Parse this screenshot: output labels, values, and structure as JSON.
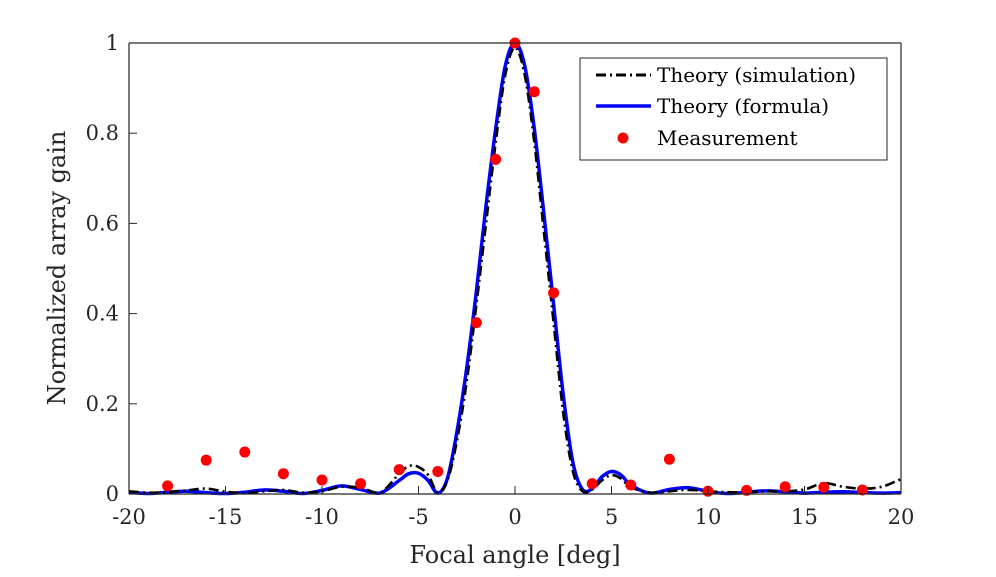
{
  "chart_data": {
    "type": "line",
    "title": "",
    "xlabel": "Focal angle [deg]",
    "ylabel": "Normalized array gain",
    "xlim": [
      -20,
      20
    ],
    "ylim": [
      0,
      1
    ],
    "xticks": [
      -20,
      -15,
      -10,
      -5,
      0,
      5,
      10,
      15,
      20
    ],
    "yticks": [
      0,
      0.2,
      0.4,
      0.6,
      0.8,
      1
    ],
    "xtick_labels": [
      "-20",
      "-15",
      "-10",
      "-5",
      "0",
      "5",
      "10",
      "15",
      "20"
    ],
    "ytick_labels": [
      "0",
      "0.2",
      "0.4",
      "0.6",
      "0.8",
      "1"
    ],
    "grid": false,
    "legend_position": "top-right",
    "series": [
      {
        "name": "Theory (simulation)",
        "style": "dash-dot",
        "color": "#000000",
        "x": [
          -20,
          -19,
          -18,
          -17,
          -16,
          -15,
          -14,
          -13,
          -12,
          -11,
          -10,
          -9,
          -8,
          -7,
          -6,
          -5.5,
          -5,
          -4.5,
          -4,
          -3.5,
          -3,
          -2.5,
          -2,
          -1.5,
          -1,
          -0.5,
          0,
          0.5,
          1,
          1.5,
          2,
          2.5,
          3,
          3.5,
          4,
          4.5,
          5,
          5.5,
          6,
          7,
          8,
          9,
          10,
          11,
          12,
          13,
          14,
          15,
          16,
          17,
          18,
          19,
          20
        ],
        "values": [
          0.006,
          0.003,
          0.004,
          0.008,
          0.012,
          0.005,
          0.002,
          0.006,
          0.009,
          0.003,
          0.006,
          0.016,
          0.014,
          0.003,
          0.045,
          0.062,
          0.06,
          0.042,
          0.003,
          0.03,
          0.12,
          0.25,
          0.42,
          0.6,
          0.78,
          0.93,
          0.99,
          0.93,
          0.78,
          0.58,
          0.38,
          0.18,
          0.05,
          0.006,
          0.01,
          0.03,
          0.042,
          0.034,
          0.015,
          0.003,
          0.006,
          0.009,
          0.006,
          0.004,
          0.004,
          0.006,
          0.006,
          0.01,
          0.024,
          0.016,
          0.012,
          0.016,
          0.033
        ]
      },
      {
        "name": "Theory (formula)",
        "style": "solid",
        "color": "#0000ff",
        "x": [
          -20,
          -19,
          -18,
          -17,
          -16,
          -15,
          -14,
          -13,
          -12,
          -11,
          -10,
          -9,
          -8,
          -7,
          -6,
          -5.5,
          -5,
          -4.5,
          -4,
          -3.5,
          -3,
          -2.5,
          -2,
          -1.5,
          -1,
          -0.5,
          0,
          0.5,
          1,
          1.5,
          2,
          2.5,
          3,
          3.5,
          4,
          4.5,
          5,
          5.5,
          6,
          7,
          8,
          9,
          10,
          11,
          12,
          13,
          14,
          15,
          16,
          17,
          18,
          19,
          20
        ],
        "values": [
          0.004,
          0.001,
          0.004,
          0.006,
          0.003,
          0.001,
          0.004,
          0.009,
          0.006,
          0.001,
          0.008,
          0.018,
          0.01,
          0.002,
          0.03,
          0.045,
          0.046,
          0.03,
          0.002,
          0.035,
          0.14,
          0.28,
          0.45,
          0.64,
          0.81,
          0.95,
          1.0,
          0.95,
          0.81,
          0.62,
          0.42,
          0.22,
          0.07,
          0.01,
          0.012,
          0.038,
          0.05,
          0.042,
          0.02,
          0.002,
          0.01,
          0.014,
          0.006,
          0.001,
          0.004,
          0.007,
          0.005,
          0.002,
          0.004,
          0.005,
          0.003,
          0.002,
          0.003
        ]
      },
      {
        "name": "Measurement",
        "style": "markers",
        "color": "#ff0000",
        "x": [
          -18,
          -16,
          -14,
          -12,
          -10,
          -8,
          -6,
          -4,
          -2,
          -1,
          0,
          1,
          2,
          4,
          6,
          8,
          10,
          12,
          14,
          16,
          18
        ],
        "values": [
          0.018,
          0.075,
          0.093,
          0.045,
          0.031,
          0.023,
          0.054,
          0.05,
          0.38,
          0.742,
          1.0,
          0.892,
          0.446,
          0.023,
          0.02,
          0.077,
          0.006,
          0.008,
          0.016,
          0.015,
          0.009
        ]
      }
    ]
  }
}
